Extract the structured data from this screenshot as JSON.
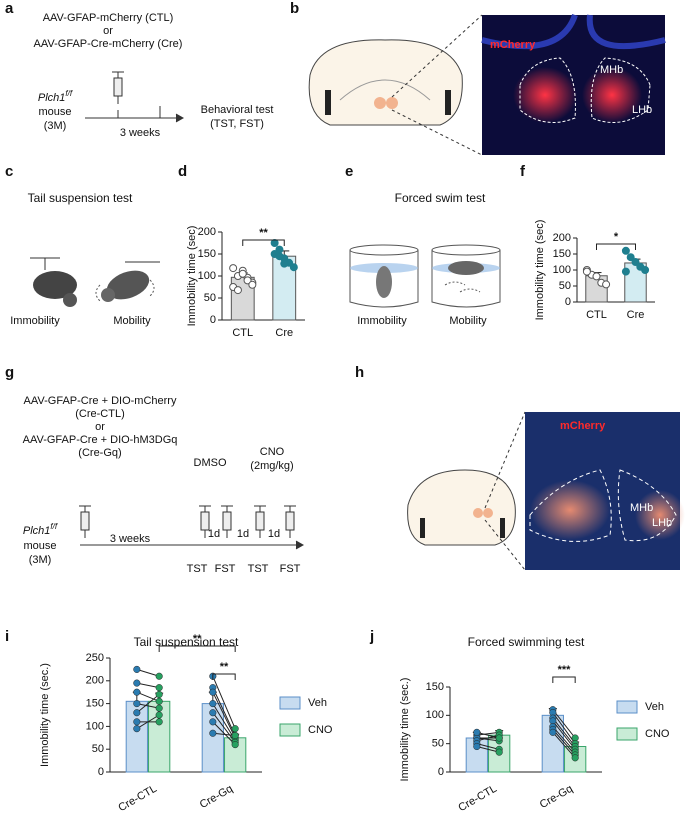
{
  "panel_labels": [
    "a",
    "b",
    "c",
    "d",
    "e",
    "f",
    "g",
    "h",
    "i",
    "j"
  ],
  "panel_a": {
    "lines": [
      "AAV-GFAP-mCherry (CTL)",
      "or",
      "AAV-GFAP-Cre-mCherry (Cre)"
    ],
    "gene": "Plch1",
    "genotype": "f/f",
    "mouse": [
      "mouse",
      "(3M)"
    ],
    "duration": "3 weeks",
    "outcome": [
      "Behavioral test",
      "(TST, FST)"
    ]
  },
  "panel_b": {
    "labels": [
      "mCherry",
      "MHb",
      "LHb"
    ]
  },
  "panel_c": {
    "title": "Tail suspension test",
    "labels": [
      "Immobility",
      "Mobility"
    ]
  },
  "panel_e": {
    "title": "Forced swim test",
    "labels": [
      "Immobility",
      "Mobility"
    ]
  },
  "panel_g": {
    "lines": [
      "AAV-GFAP-Cre + DIO-mCherry",
      "(Cre-CTL)",
      "or",
      "AAV-GFAP-Cre + DIO-hM3DGq",
      "(Cre-Gq)"
    ],
    "gene": "Plch1",
    "genotype": "f/f",
    "mouse": [
      "mouse",
      "(3M)"
    ],
    "duration": "3 weeks",
    "dmso": "DMSO",
    "cno": [
      "CNO",
      "(2mg/kg)"
    ],
    "intervals": [
      "1d",
      "1d",
      "1d"
    ],
    "tests": [
      "TST",
      "FST",
      "TST",
      "FST"
    ]
  },
  "panel_h": {
    "labels": [
      "mCherry",
      "MHb",
      "LHb"
    ]
  },
  "chart_data": [
    {
      "type": "bar",
      "ylabel": "Immobility time (sec)",
      "categories": [
        "CTL",
        "Cre"
      ],
      "values": [
        97,
        145
      ],
      "errors": [
        10,
        12
      ],
      "colors": [
        "#d9d9d9",
        "#d3ecf2"
      ],
      "point_colors": [
        "#ffffff",
        "#1f7f8f"
      ],
      "points": [
        [
          118,
          100,
          112,
          96,
          85,
          75,
          68,
          105,
          90,
          80
        ],
        [
          175,
          160,
          140,
          130,
          120,
          150,
          145,
          128
        ]
      ],
      "ylim": [
        0,
        200
      ],
      "yticks": [
        0,
        50,
        100,
        150,
        200
      ],
      "annotations": [
        "**"
      ]
    },
    {
      "type": "bar",
      "ylabel": "Immobility time (sec)",
      "categories": [
        "CTL",
        "Cre"
      ],
      "values": [
        82,
        122
      ],
      "errors": [
        10,
        12
      ],
      "colors": [
        "#d9d9d9",
        "#d3ecf2"
      ],
      "point_colors": [
        "#ffffff",
        "#1f7f8f"
      ],
      "points": [
        [
          100,
          85,
          80,
          60,
          55,
          95
        ],
        [
          160,
          140,
          125,
          110,
          100,
          95
        ]
      ],
      "ylim": [
        0,
        200
      ],
      "yticks": [
        0,
        50,
        100,
        150,
        200
      ],
      "annotations": [
        "*"
      ]
    },
    {
      "type": "paired_bar",
      "title": "Tail suspension test",
      "ylabel": "Immobility time (sec.)",
      "categories": [
        "Cre-CTL",
        "Cre-Gq"
      ],
      "legend": "right",
      "series": [
        {
          "name": "Veh",
          "color": "#c7dcf0",
          "edge": "#5b8fc8",
          "point_color": "#2a7bb0",
          "values": [
            155,
            150
          ],
          "errors": [
            20,
            25
          ],
          "points": [
            [
              225,
              195,
              175,
              150,
              130,
              110,
              95
            ],
            [
              210,
              185,
              175,
              150,
              130,
              110,
              85
            ]
          ]
        },
        {
          "name": "CNO",
          "color": "#c9ecd6",
          "edge": "#3aa56b",
          "point_color": "#27a060",
          "values": [
            155,
            75
          ],
          "errors": [
            18,
            8
          ],
          "points": [
            [
              210,
              185,
              155,
              140,
              170,
              110,
              125
            ],
            [
              95,
              80,
              75,
              70,
              65,
              60,
              80
            ]
          ]
        }
      ],
      "ylim": [
        0,
        250
      ],
      "yticks": [
        0,
        50,
        100,
        150,
        200,
        250
      ],
      "annotations": [
        "**",
        "**"
      ]
    },
    {
      "type": "paired_bar",
      "title": "Forced swimming test",
      "ylabel": "Immobility time (sec.)",
      "categories": [
        "Cre-CTL",
        "Cre-Gq"
      ],
      "legend": "right",
      "series": [
        {
          "name": "Veh",
          "color": "#c7dcf0",
          "edge": "#5b8fc8",
          "point_color": "#2a7bb0",
          "values": [
            60,
            100
          ],
          "errors": [
            10,
            12
          ],
          "points": [
            [
              65,
              60,
              60,
              55,
              50,
              45,
              70
            ],
            [
              110,
              105,
              95,
              90,
              80,
              75,
              70
            ]
          ]
        },
        {
          "name": "CNO",
          "color": "#c9ecd6",
          "edge": "#3aa56b",
          "point_color": "#27a060",
          "values": [
            65,
            45
          ],
          "errors": [
            8,
            8
          ],
          "points": [
            [
              70,
              60,
              55,
              65,
              40,
              35,
              60
            ],
            [
              60,
              50,
              45,
              40,
              35,
              30,
              25
            ]
          ]
        }
      ],
      "ylim": [
        0,
        150
      ],
      "yticks": [
        0,
        50,
        100,
        150
      ],
      "annotations": [
        "***"
      ]
    }
  ]
}
